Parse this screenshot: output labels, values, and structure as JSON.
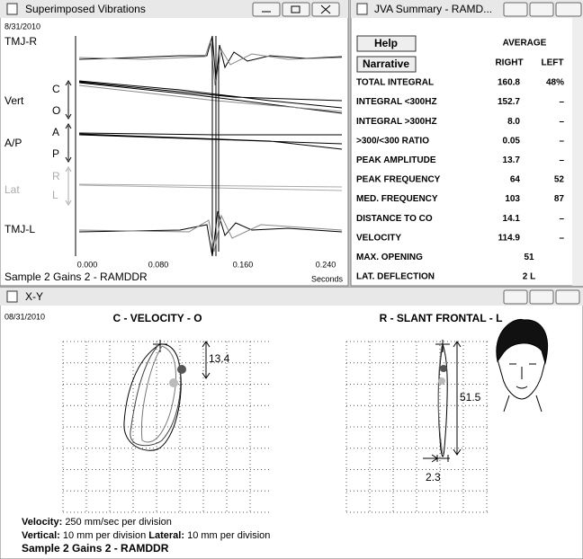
{
  "vibrations": {
    "title": "Superimposed Vibrations",
    "date": "8/31/2010",
    "labels": {
      "tmj_r": "TMJ-R",
      "vert": "Vert",
      "c": "C",
      "o": "O",
      "ap": "A/P",
      "a": "A",
      "p": "P",
      "lat": "Lat",
      "r": "R",
      "l": "L",
      "tmj_l": "TMJ-L"
    },
    "ticks": [
      "0.000",
      "0.080",
      "0.160",
      "0.240"
    ],
    "axis_label": "Seconds",
    "footer": "Sample 2 Gains 2 - RAMDDR"
  },
  "summary": {
    "title": "JVA Summary - RAMD...",
    "buttons": [
      "Help",
      "Narrative"
    ],
    "average": "AVERAGE",
    "right": "RIGHT",
    "left": "LEFT",
    "rows": [
      [
        "TOTAL INTEGRAL",
        "160.8",
        "48%"
      ],
      [
        "INTEGRAL <300HZ",
        "152.7",
        "–"
      ],
      [
        "INTEGRAL >300HZ",
        "8.0",
        "–"
      ],
      [
        ">300/<300 RATIO",
        "0.05",
        "–"
      ],
      [
        "PEAK AMPLITUDE",
        "13.7",
        "–"
      ],
      [
        "PEAK FREQUENCY",
        "64",
        "52"
      ],
      [
        "MED. FREQUENCY",
        "103",
        "87"
      ],
      [
        "DISTANCE TO CO",
        "14.1",
        "–"
      ],
      [
        "VELOCITY",
        "114.9",
        "–"
      ]
    ],
    "wide_rows": [
      [
        "MAX. OPENING",
        "51"
      ],
      [
        "LAT. DEFLECTION",
        "2 L"
      ]
    ]
  },
  "xy": {
    "title": "X-Y",
    "date": "08/31/2010",
    "left_title": "C - VELOCITY - O",
    "right_title": "R - SLANT FRONTAL - L",
    "annotations": [
      "13.4",
      "51.5",
      "2.3"
    ],
    "velocity_label": "Velocity:",
    "velocity_text": "250 mm/sec per division",
    "vertical_label": "Vertical:",
    "vertical_text": "10 mm per division",
    "lateral_label": "Lateral:",
    "lateral_text": "10 mm per division",
    "footer": "Sample 2 Gains 2 - RAMDDR"
  }
}
